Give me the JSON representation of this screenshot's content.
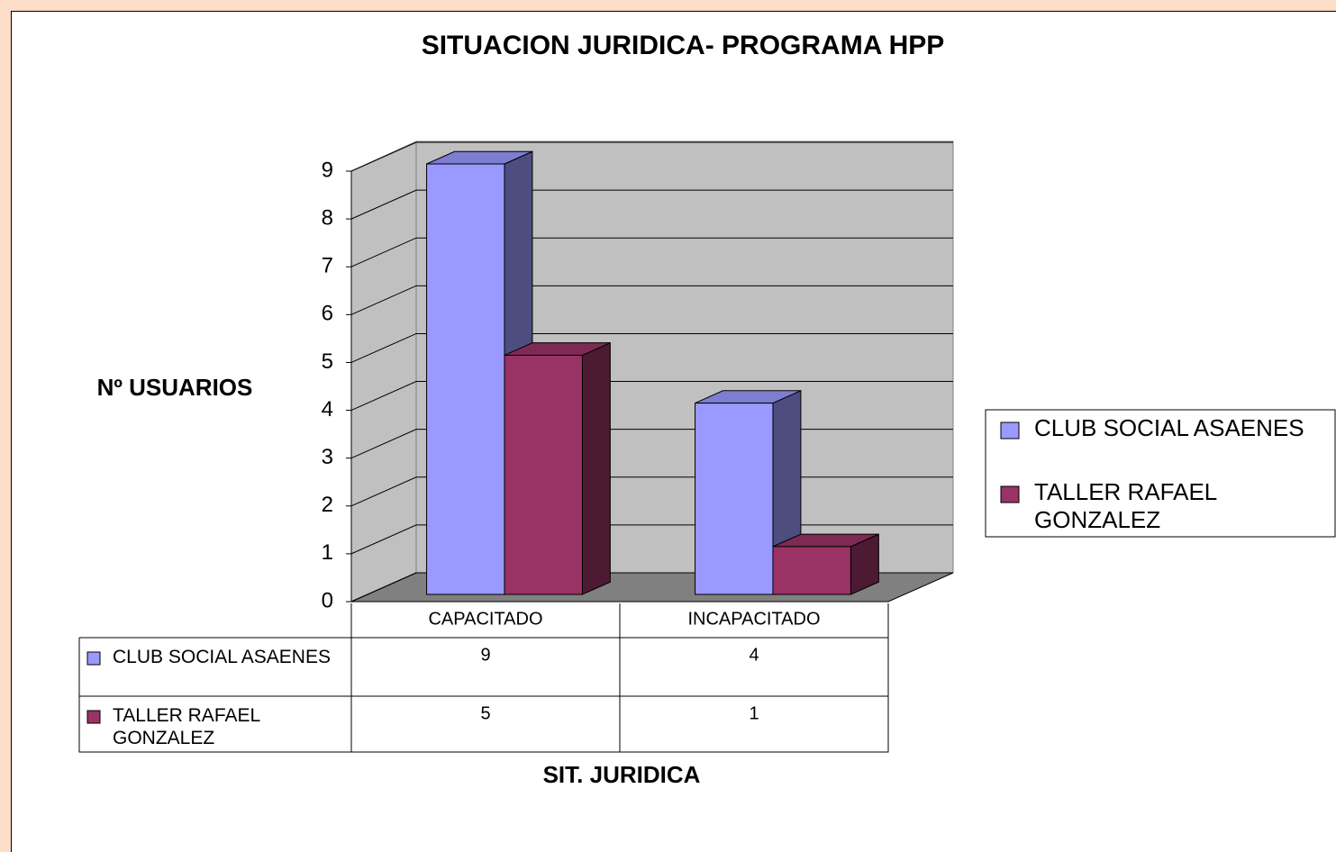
{
  "chart_data": {
    "type": "bar3d",
    "title": "SITUACION JURIDICA- PROGRAMA HPP",
    "x_label": "SIT. JURIDICA",
    "y_label": "Nº USUARIOS",
    "categories": [
      "CAPACITADO",
      "INCAPACITADO"
    ],
    "series": [
      {
        "name": "CLUB SOCIAL ASAENES",
        "color": "#9999ff",
        "values": [
          9,
          4
        ]
      },
      {
        "name": "TALLER RAFAEL GONZALEZ",
        "color": "#993366",
        "values": [
          5,
          1
        ]
      }
    ],
    "ylim": [
      0,
      9
    ],
    "yticks": [
      0,
      1,
      2,
      3,
      4,
      5,
      6,
      7,
      8,
      9
    ],
    "grid": true,
    "legend": "right",
    "data_table": true
  }
}
